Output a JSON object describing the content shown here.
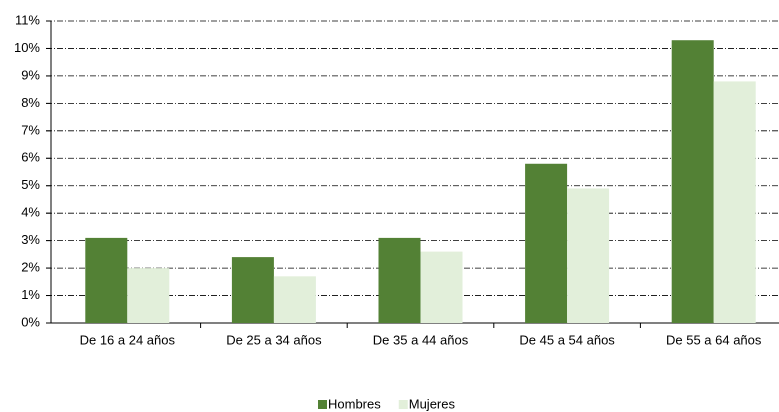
{
  "chart_data": {
    "type": "bar",
    "categories": [
      "De 16 a 24 años",
      "De 25 a 34 años",
      "De 35 a 44 años",
      "De 45 a 54 años",
      "De 55 a 64 años"
    ],
    "series": [
      {
        "name": "Hombres",
        "color": "#538135",
        "values": [
          3.1,
          2.4,
          3.1,
          5.8,
          10.3
        ]
      },
      {
        "name": "Mujeres",
        "color": "#e2efda",
        "values": [
          2.0,
          1.7,
          2.6,
          4.9,
          8.8
        ]
      }
    ],
    "ylim": [
      0,
      11
    ],
    "yticks": [
      {
        "value": 0,
        "label": "0%"
      },
      {
        "value": 1,
        "label": "1%"
      },
      {
        "value": 2,
        "label": "2%"
      },
      {
        "value": 3,
        "label": "3%"
      },
      {
        "value": 4,
        "label": "4%"
      },
      {
        "value": 5,
        "label": "5%"
      },
      {
        "value": 6,
        "label": "6%"
      },
      {
        "value": 7,
        "label": "7%"
      },
      {
        "value": 8,
        "label": "8%"
      },
      {
        "value": 9,
        "label": "9%"
      },
      {
        "value": 10,
        "label": "10%"
      },
      {
        "value": 11,
        "label": "11%"
      }
    ],
    "grid": true,
    "legend": "bottom"
  }
}
